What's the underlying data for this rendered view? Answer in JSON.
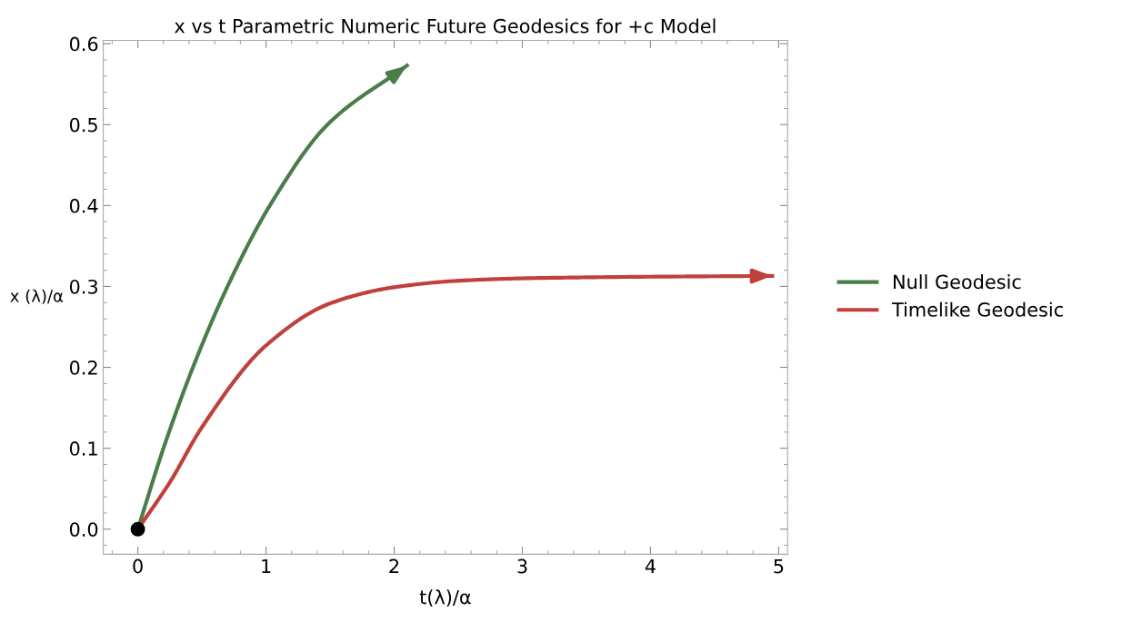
{
  "chart_data": {
    "type": "line",
    "title": "x vs t Parametric Numeric Future Geodesics for +c Model",
    "xlabel": "t(λ)/α",
    "ylabel": "x (λ)/α",
    "xlim": [
      -0.27,
      5.07
    ],
    "ylim": [
      -0.031,
      0.604
    ],
    "xticks": [
      0,
      1,
      2,
      3,
      4,
      5
    ],
    "yticks": [
      {
        "value": 0,
        "label": "0.0"
      },
      0.1,
      0.2,
      0.3,
      0.4,
      0.5,
      0.6
    ],
    "grid": false,
    "legend": "right",
    "marker": "none",
    "line_style": "solid",
    "series": [
      {
        "name": "Null Geodesic",
        "color": "#4a7d4a",
        "x": [
          0,
          0.2,
          0.43,
          0.7,
          1.03,
          1.48,
          2.1
        ],
        "values": [
          0,
          0.1,
          0.2,
          0.3,
          0.4,
          0.5,
          0.573
        ]
      },
      {
        "name": "Timelike Geodesic",
        "color": "#c0403c",
        "x": [
          0,
          0.25,
          0.5,
          1,
          1.5,
          2,
          2.5,
          3,
          4,
          4.95
        ],
        "values": [
          0,
          0.058,
          0.126,
          0.227,
          0.279,
          0.299,
          0.307,
          0.31,
          0.312,
          0.313
        ]
      },
      {
        "type": "scatter",
        "color": "#000000",
        "marker": "circle",
        "x": [
          0
        ],
        "values": [
          0
        ]
      }
    ]
  }
}
